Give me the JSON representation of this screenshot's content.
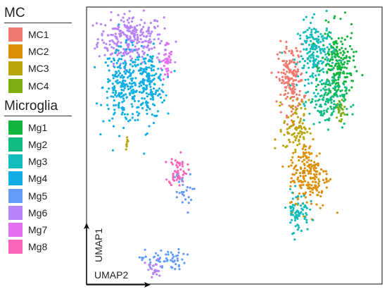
{
  "chart_data": {
    "type": "scatter",
    "title": "",
    "xlabel": "UMAP2",
    "ylabel": "UMAP1",
    "grid": false,
    "legend_position": "left",
    "legend_groups": [
      {
        "title": "MC",
        "items": [
          {
            "label": "MC1",
            "color": "#F17A70"
          },
          {
            "label": "MC2",
            "color": "#DB8E08"
          },
          {
            "label": "MC3",
            "color": "#B9A40A"
          },
          {
            "label": "MC4",
            "color": "#7EAD10"
          }
        ]
      },
      {
        "title": "Microglia",
        "items": [
          {
            "label": "Mg1",
            "color": "#11B53E"
          },
          {
            "label": "Mg2",
            "color": "#10BC81"
          },
          {
            "label": "Mg3",
            "color": "#12BCBA"
          },
          {
            "label": "Mg4",
            "color": "#10AEE4"
          },
          {
            "label": "Mg5",
            "color": "#629BFA"
          },
          {
            "label": "Mg6",
            "color": "#B883F8"
          },
          {
            "label": "Mg7",
            "color": "#E46EF0"
          },
          {
            "label": "Mg8",
            "color": "#FA64BA"
          }
        ]
      }
    ],
    "clusters": [
      {
        "label": "Mg6",
        "center": [
          -3.2,
          6.6
        ],
        "spread": [
          0.9,
          0.7
        ],
        "n": 260
      },
      {
        "label": "Mg4",
        "center": [
          -3.6,
          3.8
        ],
        "spread": [
          0.55,
          1.1
        ],
        "n": 220
      },
      {
        "label": "Mg4",
        "center": [
          -2.2,
          3.9
        ],
        "spread": [
          0.45,
          1.0
        ],
        "n": 180
      },
      {
        "label": "Mg7",
        "center": [
          -1.2,
          5.2
        ],
        "spread": [
          0.15,
          0.6
        ],
        "n": 40
      },
      {
        "label": "Mg8",
        "center": [
          -0.6,
          -1.1
        ],
        "spread": [
          0.25,
          0.45
        ],
        "n": 55
      },
      {
        "label": "Mg5",
        "center": [
          -0.4,
          -2.4
        ],
        "spread": [
          0.3,
          0.6
        ],
        "n": 25
      },
      {
        "label": "Mg5",
        "center": [
          -1.4,
          -6.3
        ],
        "spread": [
          0.6,
          0.3
        ],
        "n": 60
      },
      {
        "label": "Mg6",
        "center": [
          -1.9,
          -6.9
        ],
        "spread": [
          0.25,
          0.3
        ],
        "n": 25
      },
      {
        "label": "MC1",
        "center": [
          5.6,
          4.2
        ],
        "spread": [
          0.35,
          1.0
        ],
        "n": 170
      },
      {
        "label": "Mg3",
        "center": [
          7.0,
          5.6
        ],
        "spread": [
          0.5,
          1.0
        ],
        "n": 200
      },
      {
        "label": "Mg1",
        "center": [
          8.2,
          4.9
        ],
        "spread": [
          0.45,
          1.1
        ],
        "n": 200
      },
      {
        "label": "Mg2",
        "center": [
          7.6,
          2.9
        ],
        "spread": [
          0.5,
          0.7
        ],
        "n": 120
      },
      {
        "label": "MC3",
        "center": [
          5.9,
          1.4
        ],
        "spread": [
          0.35,
          0.8
        ],
        "n": 90
      },
      {
        "label": "MC2",
        "center": [
          6.6,
          -1.4
        ],
        "spread": [
          0.55,
          1.0
        ],
        "n": 200
      },
      {
        "label": "Mg3",
        "center": [
          6.0,
          -3.5
        ],
        "spread": [
          0.3,
          0.6
        ],
        "n": 70
      },
      {
        "label": "MC4",
        "center": [
          8.3,
          2.4
        ],
        "spread": [
          0.2,
          0.4
        ],
        "n": 25
      },
      {
        "label": "MC3",
        "center": [
          -3.4,
          0.6
        ],
        "spread": [
          0.03,
          0.2
        ],
        "n": 8
      }
    ],
    "xlim": [
      -5.5,
      10.5
    ],
    "ylim": [
      -7.6,
      8.3
    ]
  }
}
